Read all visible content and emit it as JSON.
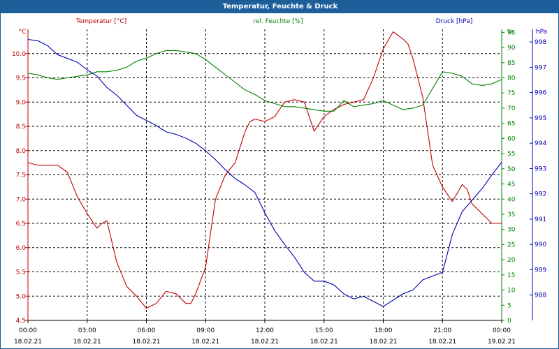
{
  "window": {
    "title": "Temperatur, Feuchte & Druck"
  },
  "colors": {
    "temperature": "#c00000",
    "humidity": "#008000",
    "pressure": "#0000b0",
    "title_bar": "#1c5f9b",
    "grid": "#000000"
  },
  "chart_data": {
    "type": "line",
    "title": "Temperatur, Feuchte & Druck",
    "grid": true,
    "x_axis": {
      "ticks": [
        {
          "time": "00:00",
          "date": "18.02.21"
        },
        {
          "time": "03:00",
          "date": "18.02.21"
        },
        {
          "time": "06:00",
          "date": "18.02.21"
        },
        {
          "time": "09:00",
          "date": "18.02.21"
        },
        {
          "time": "12:00",
          "date": "18.02.21"
        },
        {
          "time": "15:00",
          "date": "18.02.21"
        },
        {
          "time": "18:00",
          "date": "18.02.21"
        },
        {
          "time": "21:00",
          "date": "18.02.21"
        },
        {
          "time": "00:00",
          "date": "19.02.21"
        }
      ],
      "range_hours": [
        0,
        24
      ]
    },
    "axes": {
      "temperature": {
        "label": "Temperatur [°C]",
        "unit": "°C",
        "range": [
          4.5,
          10.5
        ],
        "ticks": [
          "4.5",
          "5.0",
          "5.5",
          "6.0",
          "6.5",
          "7.0",
          "7.5",
          "8.0",
          "8.5",
          "9.0",
          "9.5",
          "10.0"
        ]
      },
      "humidity": {
        "label": "rel. Feuchte [%]",
        "unit": "%",
        "range": [
          0,
          96
        ],
        "ticks": [
          "0",
          "5",
          "10",
          "15",
          "20",
          "25",
          "30",
          "35",
          "40",
          "45",
          "50",
          "55",
          "60",
          "65",
          "70",
          "75",
          "80",
          "85",
          "90",
          "95"
        ]
      },
      "pressure": {
        "label": "Druck [hPa]",
        "unit": "hPa",
        "range": [
          987,
          998.5
        ],
        "ticks": [
          "988",
          "989",
          "990",
          "991",
          "992",
          "993",
          "994",
          "995",
          "996",
          "997",
          "998"
        ]
      }
    },
    "series": [
      {
        "name": "Temperatur [°C]",
        "axis": "temperature",
        "x": [
          0,
          0.5,
          1,
          1.5,
          2,
          2.5,
          3,
          3.5,
          3.75,
          4,
          4.5,
          5,
          5.5,
          6,
          6.25,
          6.5,
          7,
          7.5,
          8,
          8.25,
          8.5,
          9,
          9.25,
          9.5,
          10,
          10.5,
          11,
          11.25,
          11.5,
          12,
          12.5,
          13,
          13.5,
          14,
          14.5,
          15,
          15.5,
          16,
          16.5,
          17,
          17.5,
          18,
          18.5,
          19,
          19.25,
          19.5,
          20,
          20.5,
          21,
          21.5,
          22,
          22.25,
          22.5,
          23,
          23.5,
          24
        ],
        "values": [
          7.75,
          7.7,
          7.7,
          7.7,
          7.55,
          7.05,
          6.7,
          6.4,
          6.5,
          6.55,
          5.7,
          5.2,
          5.0,
          4.75,
          4.8,
          4.85,
          5.1,
          5.05,
          4.85,
          4.85,
          5.05,
          5.6,
          6.3,
          7.0,
          7.5,
          7.75,
          8.4,
          8.6,
          8.65,
          8.6,
          8.7,
          9.0,
          9.05,
          9.0,
          8.4,
          8.7,
          8.85,
          8.95,
          9.0,
          9.05,
          9.5,
          10.1,
          10.45,
          10.3,
          10.2,
          9.9,
          9.1,
          7.7,
          7.25,
          6.95,
          7.3,
          7.2,
          6.9,
          6.7,
          6.5,
          6.5
        ],
        "color": "#c00000"
      },
      {
        "name": "rel. Feuchte [%]",
        "axis": "humidity",
        "x": [
          0,
          0.5,
          1,
          1.5,
          2,
          2.5,
          3,
          3.5,
          4,
          4.5,
          5,
          5.5,
          6,
          6.5,
          7,
          7.5,
          8,
          8.5,
          9,
          9.5,
          10,
          10.5,
          11,
          11.5,
          12,
          12.5,
          13,
          13.5,
          14,
          14.5,
          15,
          15.5,
          16,
          16.5,
          17,
          17.5,
          18,
          18.5,
          19,
          19.5,
          20,
          20.5,
          21,
          21.5,
          22,
          22.5,
          23,
          23.5,
          24
        ],
        "values": [
          81.5,
          81,
          80,
          79.5,
          80,
          80.5,
          81,
          82,
          82,
          82.5,
          83.5,
          85.5,
          86.5,
          88,
          89,
          89,
          88.5,
          88,
          86,
          83.5,
          81,
          78.5,
          76,
          74.5,
          72.5,
          71.5,
          70.5,
          70.5,
          70,
          69.5,
          69,
          69,
          72.5,
          70.5,
          71,
          71.5,
          72.5,
          71,
          69.5,
          70,
          71,
          76.5,
          82,
          81.5,
          80.5,
          78,
          77.5,
          78,
          79.5
        ],
        "color": "#008000"
      },
      {
        "name": "Druck [hPa]",
        "axis": "pressure",
        "x": [
          0,
          0.5,
          1,
          1.5,
          2,
          2.5,
          3,
          3.5,
          4,
          4.5,
          5,
          5.5,
          6,
          6.5,
          7,
          7.5,
          8,
          8.5,
          9,
          9.5,
          10,
          10.5,
          11,
          11.5,
          12,
          12.5,
          13,
          13.5,
          14,
          14.5,
          15,
          15.5,
          16,
          16.5,
          17,
          17.5,
          18,
          18.5,
          19,
          19.5,
          20,
          20.5,
          21,
          21.5,
          22,
          22.5,
          23,
          23.5,
          24
        ],
        "values": [
          998.1,
          998.05,
          997.85,
          997.5,
          997.35,
          997.2,
          996.9,
          996.65,
          996.2,
          995.9,
          995.5,
          995.1,
          994.9,
          994.7,
          994.45,
          994.35,
          994.2,
          994.0,
          993.7,
          993.35,
          992.95,
          992.6,
          992.35,
          992.05,
          991.25,
          990.55,
          990.0,
          989.5,
          988.9,
          988.55,
          988.55,
          988.4,
          988.05,
          987.85,
          987.95,
          987.75,
          987.55,
          987.8,
          988.05,
          988.2,
          988.6,
          988.75,
          988.9,
          990.4,
          991.3,
          991.75,
          992.2,
          992.75,
          993.25
        ],
        "color": "#0000b0"
      }
    ]
  }
}
